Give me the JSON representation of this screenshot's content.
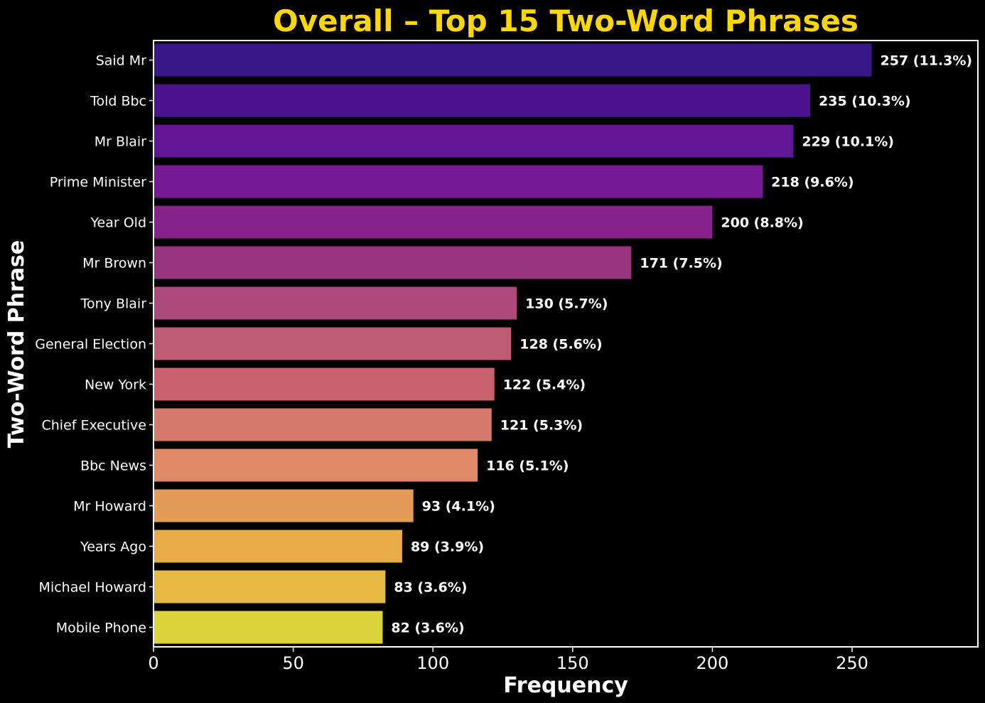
{
  "chart_data": {
    "type": "bar",
    "orientation": "horizontal",
    "title": "Overall – Top 15 Two-Word Phrases",
    "xlabel": "Frequency",
    "ylabel": "Two-Word Phrase",
    "xlim": [
      0,
      300
    ],
    "xticks": [
      "0",
      "50",
      "100",
      "150",
      "200",
      "250"
    ],
    "xtick_values": [
      0,
      50,
      100,
      150,
      200,
      250
    ],
    "grid": false,
    "categories": [
      "Said Mr",
      "Told Bbc",
      "Mr Blair",
      "Prime Minister",
      "Year Old",
      "Mr Brown",
      "Tony Blair",
      "General Election",
      "New York",
      "Chief Executive",
      "Bbc News",
      "Mr Howard",
      "Years Ago",
      "Michael Howard",
      "Mobile Phone"
    ],
    "values": [
      257,
      235,
      229,
      218,
      200,
      171,
      130,
      128,
      122,
      121,
      116,
      93,
      89,
      83,
      82
    ],
    "data_labels": [
      "257 (11.3%)",
      "235 (10.3%)",
      "229 (10.1%)",
      "218 (9.6%)",
      "200 (8.8%)",
      "171 (7.5%)",
      "130 (5.7%)",
      "128 (5.6%)",
      "122 (5.4%)",
      "121 (5.3%)",
      "116 (5.1%)",
      "93 (4.1%)",
      "89 (3.9%)",
      "83 (3.6%)",
      "82 (3.6%)"
    ],
    "colors": [
      "#371886",
      "#4c138f",
      "#611696",
      "#751a93",
      "#88228b",
      "#99347f",
      "#ac4a7c",
      "#bd5a74",
      "#c9626e",
      "#d67a6c",
      "#df8a65",
      "#e39b57",
      "#e8ab47",
      "#e4bb40",
      "#ddd33c"
    ],
    "background": "#000000",
    "title_color": "#FFD700",
    "text_color": "#ffffff"
  }
}
